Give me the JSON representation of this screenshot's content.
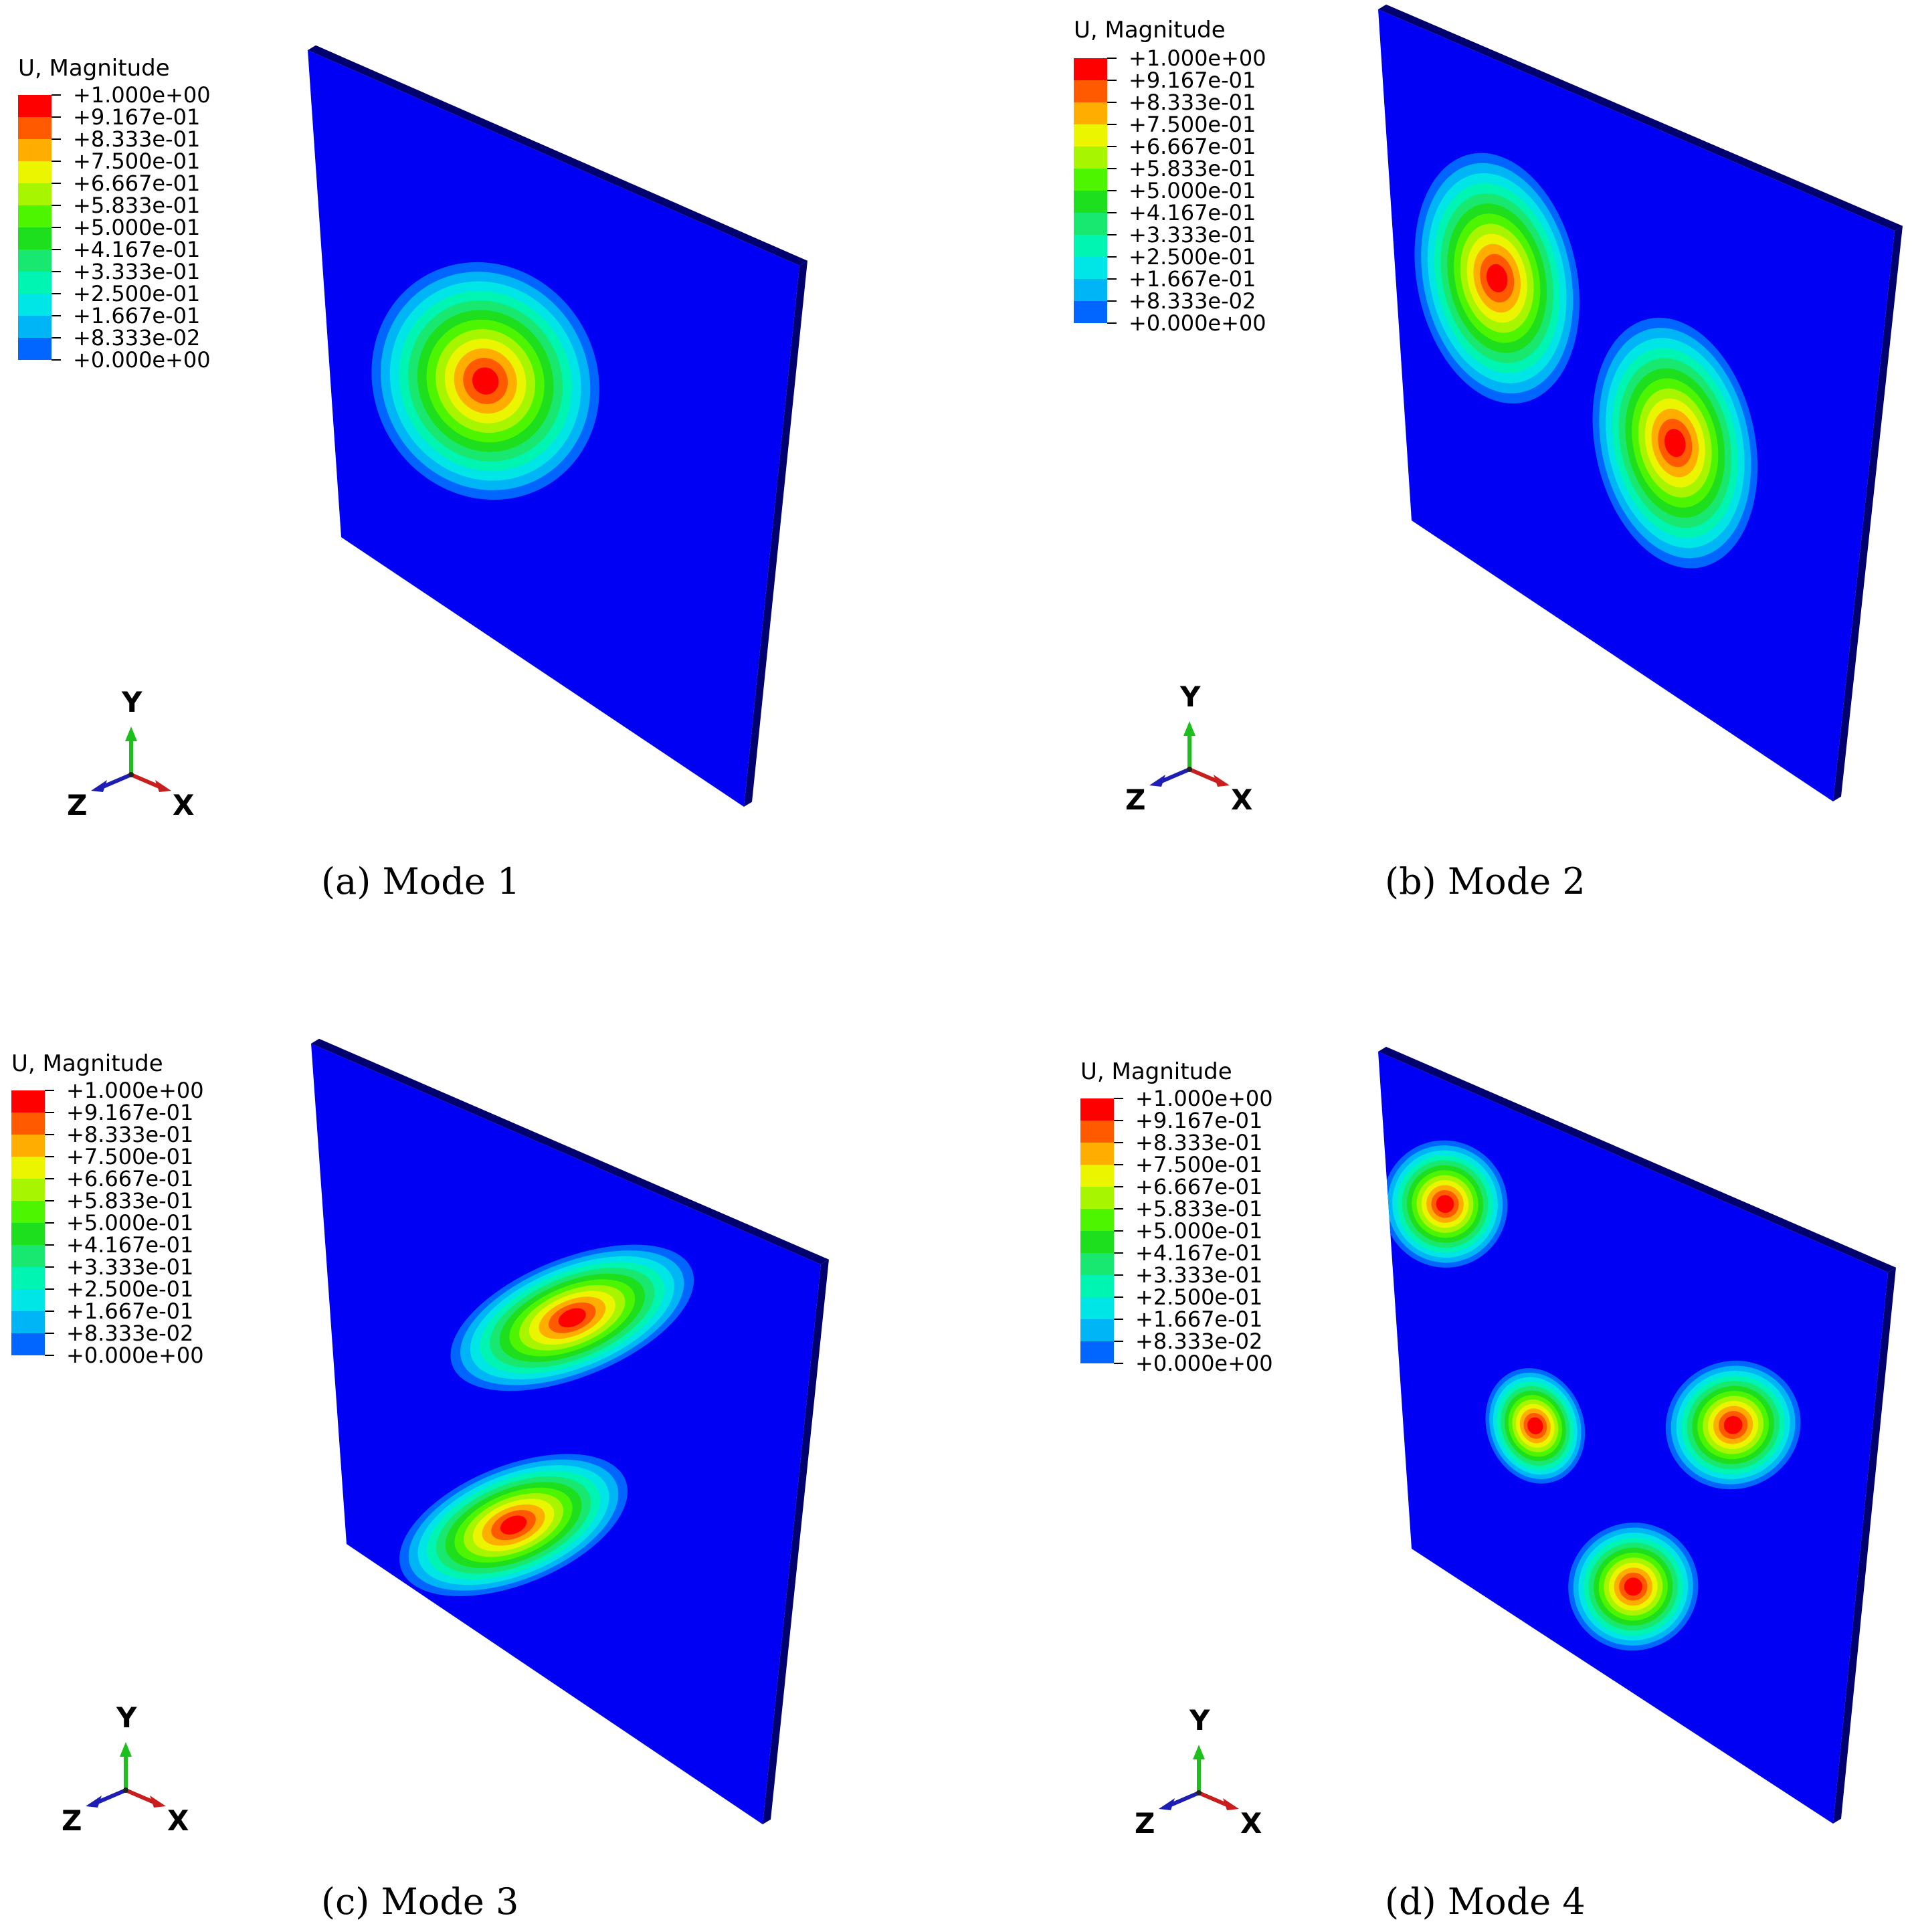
{
  "legend": {
    "title": "U, Magnitude",
    "labels": [
      "+1.000e+00",
      "+9.167e-01",
      "+8.333e-01",
      "+7.500e-01",
      "+6.667e-01",
      "+5.833e-01",
      "+5.000e-01",
      "+4.167e-01",
      "+3.333e-01",
      "+2.500e-01",
      "+1.667e-01",
      "+8.333e-02",
      "+0.000e+00"
    ],
    "colors": [
      "#ff0000",
      "#ff5a00",
      "#ffae00",
      "#ecf500",
      "#a8f500",
      "#4df500",
      "#1ddf1d",
      "#18e870",
      "#00f5b3",
      "#00e5e6",
      "#00b5f5",
      "#0066ff",
      "#0000f5"
    ]
  },
  "triad": {
    "y": "Y",
    "x": "X",
    "z": "Z"
  },
  "captions": {
    "a": "(a) Mode 1",
    "b": "(b) Mode 2",
    "c": "(c) Mode 3",
    "d": "(d) Mode 4"
  },
  "colors": {
    "plate": "#0000f5",
    "edge": "#00006e",
    "y_arrow": "#1dbf1d",
    "x_arrow": "#c81e1e",
    "z_arrow": "#1e1eb4"
  }
}
